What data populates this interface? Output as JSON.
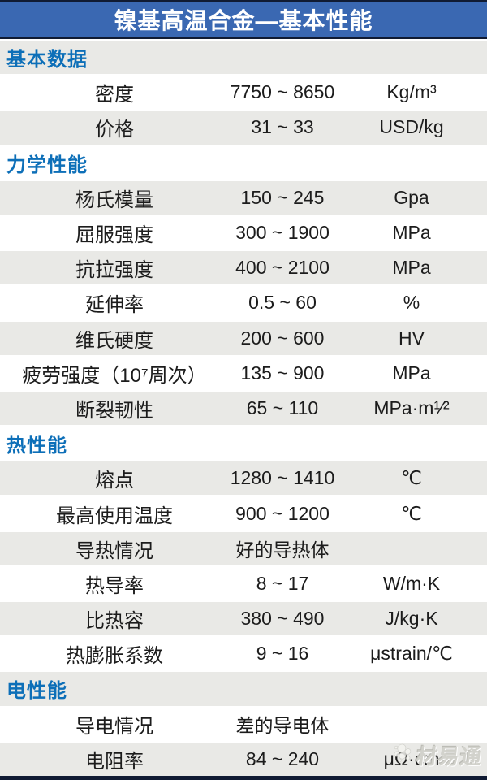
{
  "title": "镍基高温合金—基本性能",
  "colors": {
    "title_bar_blue": "#3a68b2",
    "dark_edge": "#101b33",
    "section_text_blue": "#0d6fb8",
    "row_alt_gray": "#e9e9e6",
    "row_white": "#ffffff",
    "body_text": "#1c1c1c"
  },
  "watermark": {
    "text": "材易通",
    "icon": "bubble-cluster-logo-icon"
  },
  "sections": [
    {
      "label": "基本数据",
      "rows": [
        {
          "name": "密度",
          "value": "7750 ~ 8650",
          "unit": "Kg/m³"
        },
        {
          "name": "价格",
          "value": "31 ~ 33",
          "unit": "USD/kg"
        }
      ]
    },
    {
      "label": "力学性能",
      "rows": [
        {
          "name": "杨氏模量",
          "value": "150 ~ 245",
          "unit": "Gpa"
        },
        {
          "name": "屈服强度",
          "value": "300 ~ 1900",
          "unit": "MPa"
        },
        {
          "name": "抗拉强度",
          "value": "400 ~ 2100",
          "unit": "MPa"
        },
        {
          "name": "延伸率",
          "value": "0.5 ~ 60",
          "unit": "%"
        },
        {
          "name": "维氏硬度",
          "value": "200 ~ 600",
          "unit": "HV"
        },
        {
          "name": "疲劳强度（10⁷周次）",
          "value": "135 ~ 900",
          "unit": "MPa"
        },
        {
          "name": "断裂韧性",
          "value": "65 ~ 110",
          "unit": "MPa·m¹⁄²"
        }
      ]
    },
    {
      "label": "热性能",
      "rows": [
        {
          "name": "熔点",
          "value": "1280 ~ 1410",
          "unit": "℃"
        },
        {
          "name": "最高使用温度",
          "value": "900 ~ 1200",
          "unit": "℃"
        },
        {
          "name": "导热情况",
          "value": "好的导热体",
          "unit": ""
        },
        {
          "name": "热导率",
          "value": "8 ~ 17",
          "unit": "W/m·K"
        },
        {
          "name": "比热容",
          "value": "380 ~ 490",
          "unit": "J/kg·K"
        },
        {
          "name": "热膨胀系数",
          "value": "9 ~ 16",
          "unit": "μstrain/℃"
        }
      ]
    },
    {
      "label": "电性能",
      "rows": [
        {
          "name": "导电情况",
          "value": "差的导电体",
          "unit": ""
        },
        {
          "name": "电阻率",
          "value": "84 ~ 240",
          "unit": "μΩ·cm"
        }
      ]
    }
  ]
}
